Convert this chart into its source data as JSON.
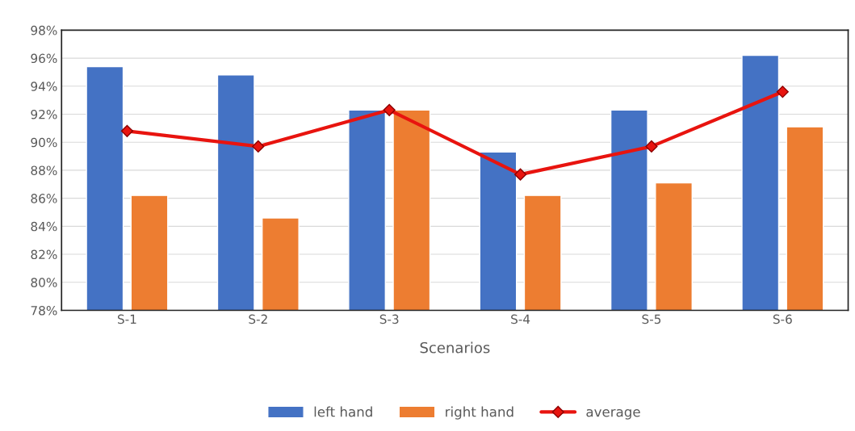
{
  "chart_data": {
    "type": "bar",
    "xlabel": "Scenarios",
    "categories": [
      "S-1",
      "S-2",
      "S-3",
      "S-4",
      "S-5",
      "S-6"
    ],
    "series": [
      {
        "name": "left hand",
        "color": "#4472c4",
        "values": [
          95.4,
          94.8,
          92.3,
          89.3,
          92.3,
          96.2
        ]
      },
      {
        "name": "right hand",
        "color": "#ed7d31",
        "values": [
          86.2,
          84.6,
          92.3,
          86.2,
          87.1,
          91.1
        ]
      },
      {
        "name": "average",
        "type": "line",
        "color": "#e8140f",
        "marker": "diamond",
        "line_style": "solid",
        "values": [
          90.8,
          89.7,
          92.3,
          87.7,
          89.7,
          93.6
        ]
      }
    ],
    "ylim": [
      78,
      98
    ],
    "yticks": [
      {
        "value": 78,
        "label": "78%"
      },
      {
        "value": 80,
        "label": "80%"
      },
      {
        "value": 82,
        "label": "82%"
      },
      {
        "value": 84,
        "label": "84%"
      },
      {
        "value": 86,
        "label": "86%"
      },
      {
        "value": 88,
        "label": "88%"
      },
      {
        "value": 90,
        "label": "90%"
      },
      {
        "value": 92,
        "label": "92%"
      },
      {
        "value": 94,
        "label": "94%"
      },
      {
        "value": 96,
        "label": "96%"
      },
      {
        "value": 98,
        "label": "98%"
      }
    ],
    "grid": "y",
    "legend": "bottom"
  }
}
